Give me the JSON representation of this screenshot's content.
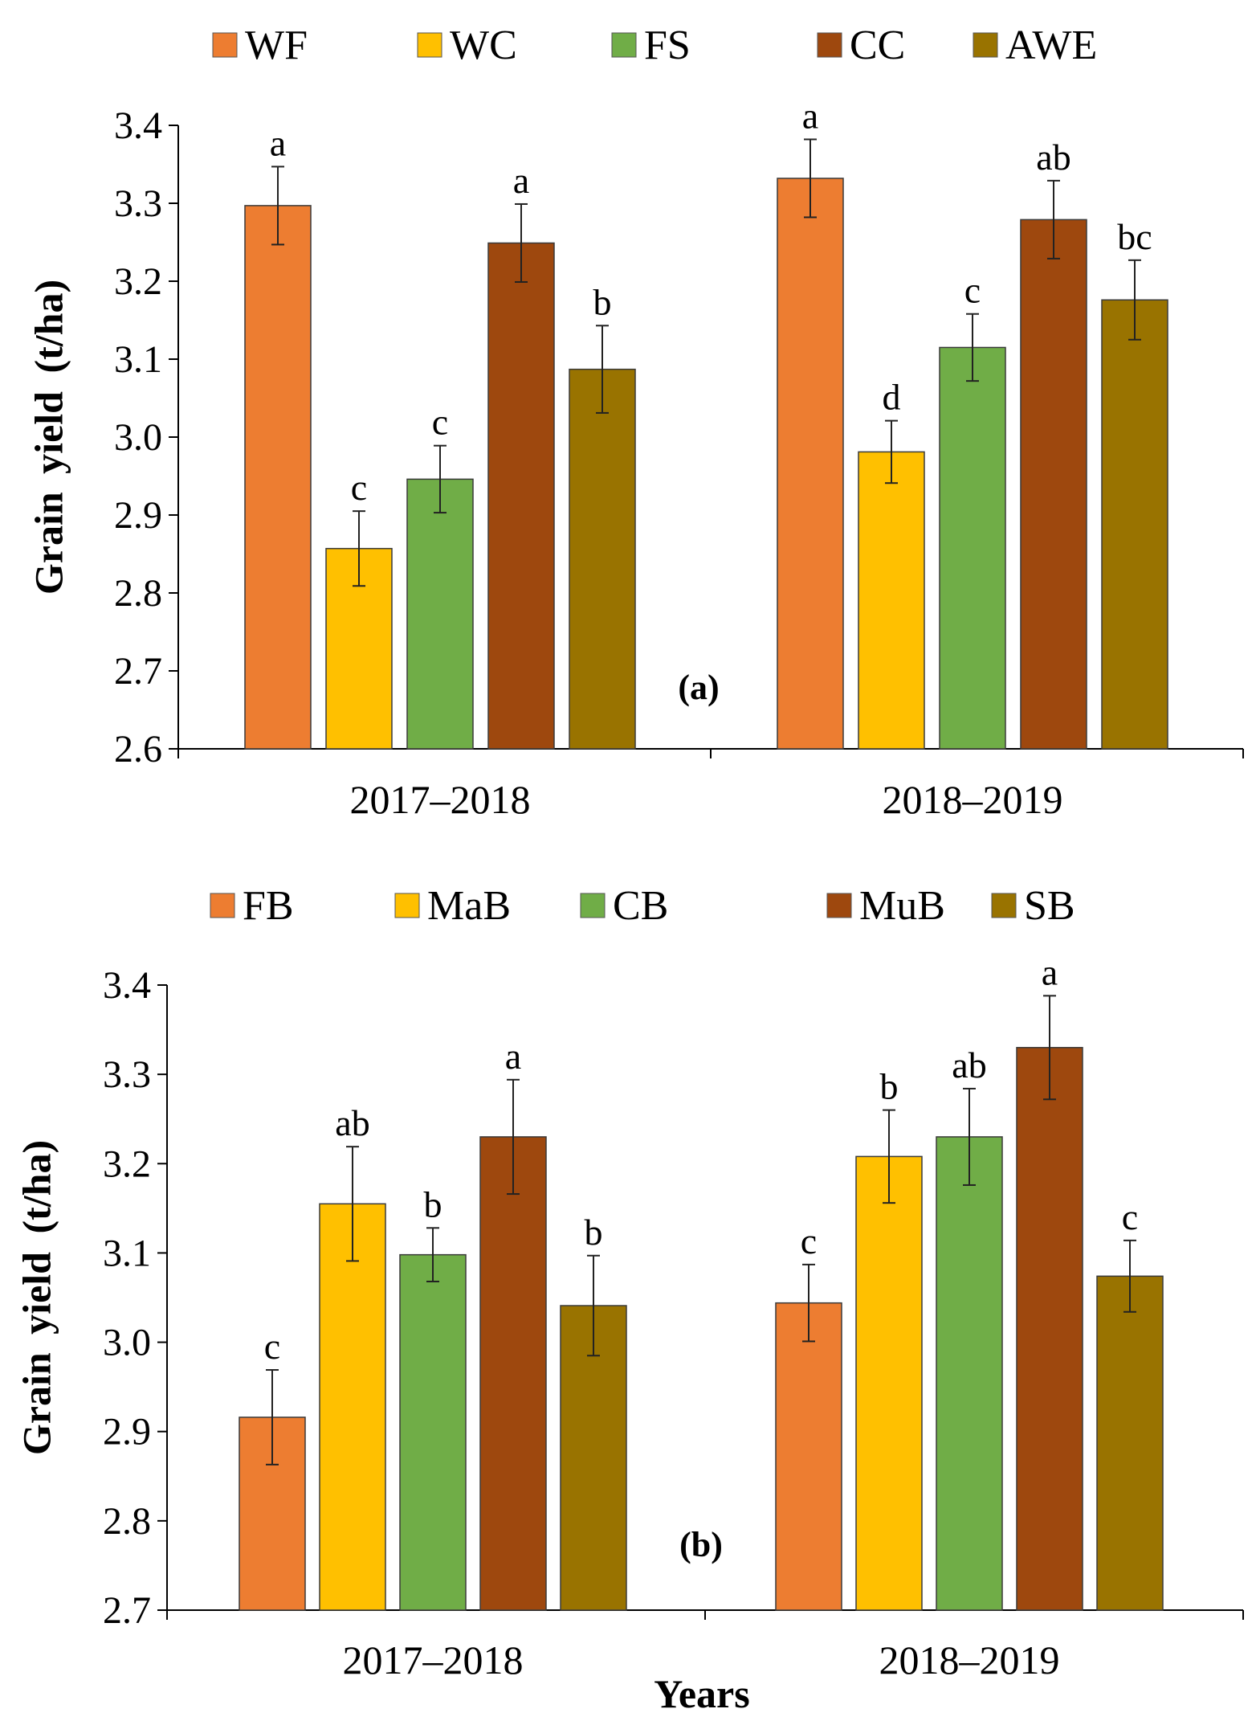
{
  "chart_data": [
    {
      "type": "bar",
      "panel_label": "(a)",
      "title": "",
      "xlabel": "",
      "ylabel": "Grain yield (t/ha)",
      "ylim": [
        2.6,
        3.4
      ],
      "yticks": [
        "2.6",
        "2.7",
        "2.8",
        "2.9",
        "3.0",
        "3.1",
        "3.2",
        "3.3",
        "3.4"
      ],
      "grid": false,
      "legend_position": "top",
      "categories": [
        "2017–2018",
        "2018–2019"
      ],
      "series": [
        {
          "name": "WF",
          "color": "#ED7D31",
          "values": [
            3.297,
            3.332
          ],
          "errors": [
            0.05,
            0.05
          ],
          "letters": [
            "a",
            "a"
          ]
        },
        {
          "name": "WC",
          "color": "#FFC000",
          "values": [
            2.857,
            2.981
          ],
          "errors": [
            0.048,
            0.04
          ],
          "letters": [
            "c",
            "d"
          ]
        },
        {
          "name": "FS",
          "color": "#70AD47",
          "values": [
            2.946,
            3.115
          ],
          "errors": [
            0.043,
            0.043
          ],
          "letters": [
            "c",
            "c"
          ]
        },
        {
          "name": "CC",
          "color": "#9E480E",
          "values": [
            3.249,
            3.279
          ],
          "errors": [
            0.05,
            0.05
          ],
          "letters": [
            "a",
            "ab"
          ]
        },
        {
          "name": "AWE",
          "color": "#997300",
          "values": [
            3.087,
            3.176
          ],
          "errors": [
            0.056,
            0.051
          ],
          "letters": [
            "b",
            "bc"
          ]
        }
      ]
    },
    {
      "type": "bar",
      "panel_label": "(b)",
      "title": "",
      "xlabel": "Years",
      "ylabel": "Grain yield (t/ha)",
      "ylim": [
        2.7,
        3.4
      ],
      "yticks": [
        "2.7",
        "2.8",
        "2.9",
        "3.0",
        "3.1",
        "3.2",
        "3.3",
        "3.4"
      ],
      "grid": false,
      "legend_position": "top",
      "categories": [
        "2017–2018",
        "2018–2019"
      ],
      "series": [
        {
          "name": "FB",
          "color": "#ED7D31",
          "values": [
            2.916,
            3.044
          ],
          "errors": [
            0.053,
            0.043
          ],
          "letters": [
            "c",
            "c"
          ]
        },
        {
          "name": "MaB",
          "color": "#FFC000",
          "values": [
            3.155,
            3.208
          ],
          "errors": [
            0.064,
            0.052
          ],
          "letters": [
            "ab",
            "b"
          ]
        },
        {
          "name": "CB",
          "color": "#70AD47",
          "values": [
            3.098,
            3.23
          ],
          "errors": [
            0.03,
            0.054
          ],
          "letters": [
            "b",
            "ab"
          ]
        },
        {
          "name": "MuB",
          "color": "#9E480E",
          "values": [
            3.23,
            3.33
          ],
          "errors": [
            0.064,
            0.058
          ],
          "letters": [
            "a",
            "a"
          ]
        },
        {
          "name": "SB",
          "color": "#997300",
          "values": [
            3.041,
            3.074
          ],
          "errors": [
            0.056,
            0.04
          ],
          "letters": [
            "b",
            "c"
          ]
        }
      ]
    }
  ]
}
